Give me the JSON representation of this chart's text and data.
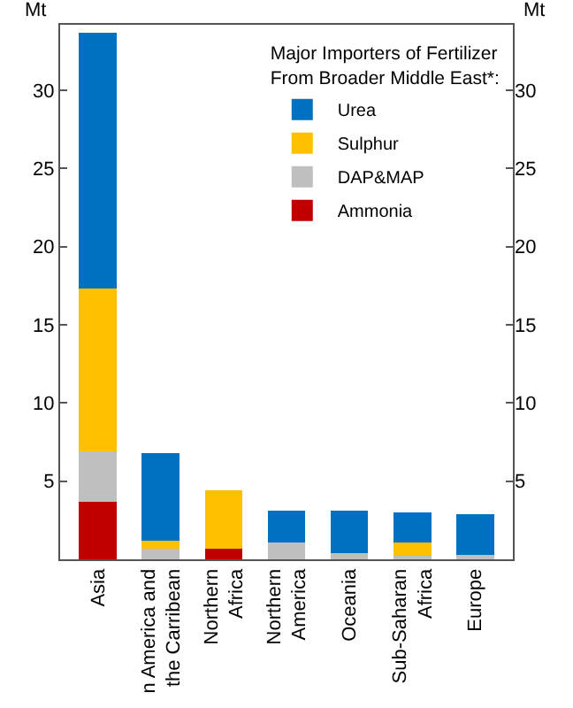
{
  "chart_data": {
    "type": "bar",
    "stacked": true,
    "legend_title": "Major Importers of Fertilizer\nFrom Broader Middle East*:",
    "ylabel": "Mt",
    "y2label": "Mt",
    "categories": [
      "Asia",
      "n America and\nthe Carribean",
      "Northern\nAfrica",
      "Northern\nAmerica",
      "Oceania",
      "Sub-Saharan\nAfrica",
      "Europe"
    ],
    "series": [
      {
        "name": "Ammonia",
        "color": "#c00000",
        "values": [
          3.7,
          0,
          0.7,
          0,
          0,
          0,
          0
        ]
      },
      {
        "name": "DAP&MAP",
        "color": "#bfbfbf",
        "values": [
          3.2,
          0.7,
          0,
          1.1,
          0.4,
          0.2,
          0.3
        ]
      },
      {
        "name": "Sulphur",
        "color": "#ffc000",
        "values": [
          10.4,
          0.5,
          3.7,
          0,
          0,
          0.9,
          0
        ]
      },
      {
        "name": "Urea",
        "color": "#0070c0",
        "values": [
          16.4,
          5.6,
          0,
          2.0,
          2.7,
          1.9,
          2.6
        ]
      }
    ],
    "ylim": [
      0,
      34.2
    ],
    "yticks": [
      5,
      10,
      15,
      20,
      25,
      30
    ],
    "y2lim": [
      0,
      34.2
    ],
    "y2ticks": [
      5,
      10,
      15,
      20,
      25,
      30
    ],
    "legend": "top right"
  }
}
